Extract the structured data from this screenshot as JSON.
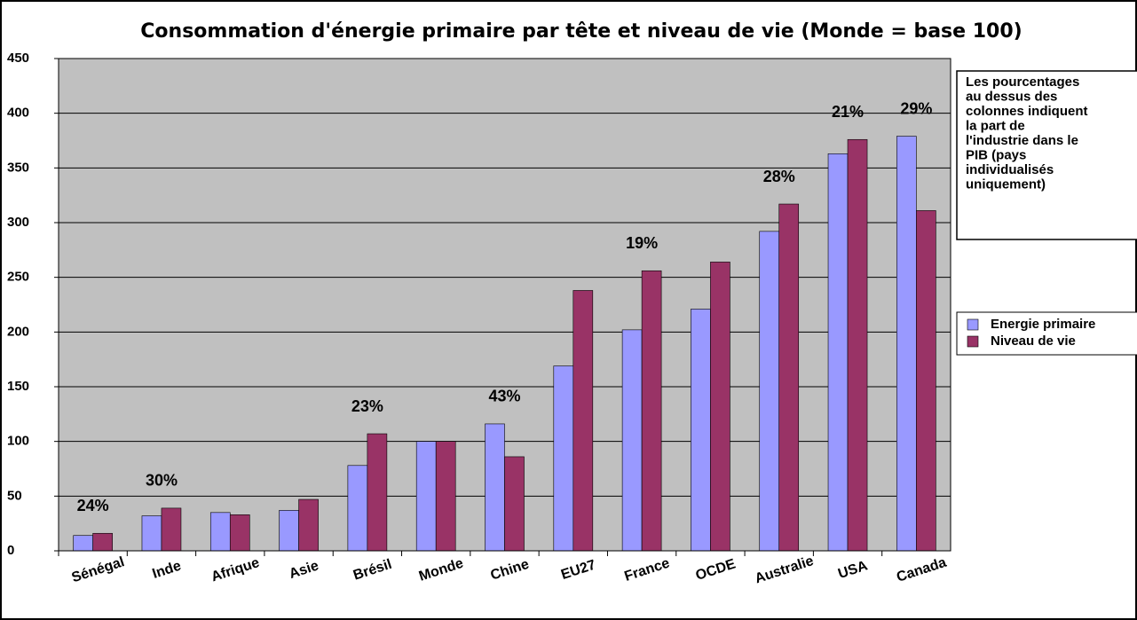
{
  "chart_data": {
    "type": "bar",
    "title": "Consommation d'énergie primaire par tête et niveau de vie (Monde = base 100)",
    "categories": [
      "Sénégal",
      "Inde",
      "Afrique",
      "Asie",
      "Brésil",
      "Monde",
      "Chine",
      "EU27",
      "France",
      "OCDE",
      "Australie",
      "USA",
      "Canada"
    ],
    "series": [
      {
        "name": "Energie primaire",
        "color": "#9999ff",
        "values": [
          14,
          32,
          35,
          37,
          78,
          100,
          116,
          169,
          202,
          221,
          292,
          363,
          379
        ]
      },
      {
        "name": "Niveau de vie",
        "color": "#993366",
        "values": [
          16,
          39,
          33,
          47,
          107,
          100,
          86,
          238,
          256,
          264,
          317,
          376,
          311
        ]
      }
    ],
    "industry_share_labels": [
      "24%",
      "30%",
      null,
      null,
      "23%",
      null,
      "43%",
      null,
      "19%",
      null,
      "28%",
      "21%",
      "29%"
    ],
    "note": [
      "Les pourcentages",
      "au dessus des",
      "colonnes indiquent",
      "la part de",
      "l'industrie dans  le",
      "PIB (pays",
      "individualisés",
      "uniquement)"
    ],
    "ylim": [
      0,
      450
    ],
    "yticks": [
      0,
      50,
      100,
      150,
      200,
      250,
      300,
      350,
      400,
      450
    ],
    "grid": true
  }
}
